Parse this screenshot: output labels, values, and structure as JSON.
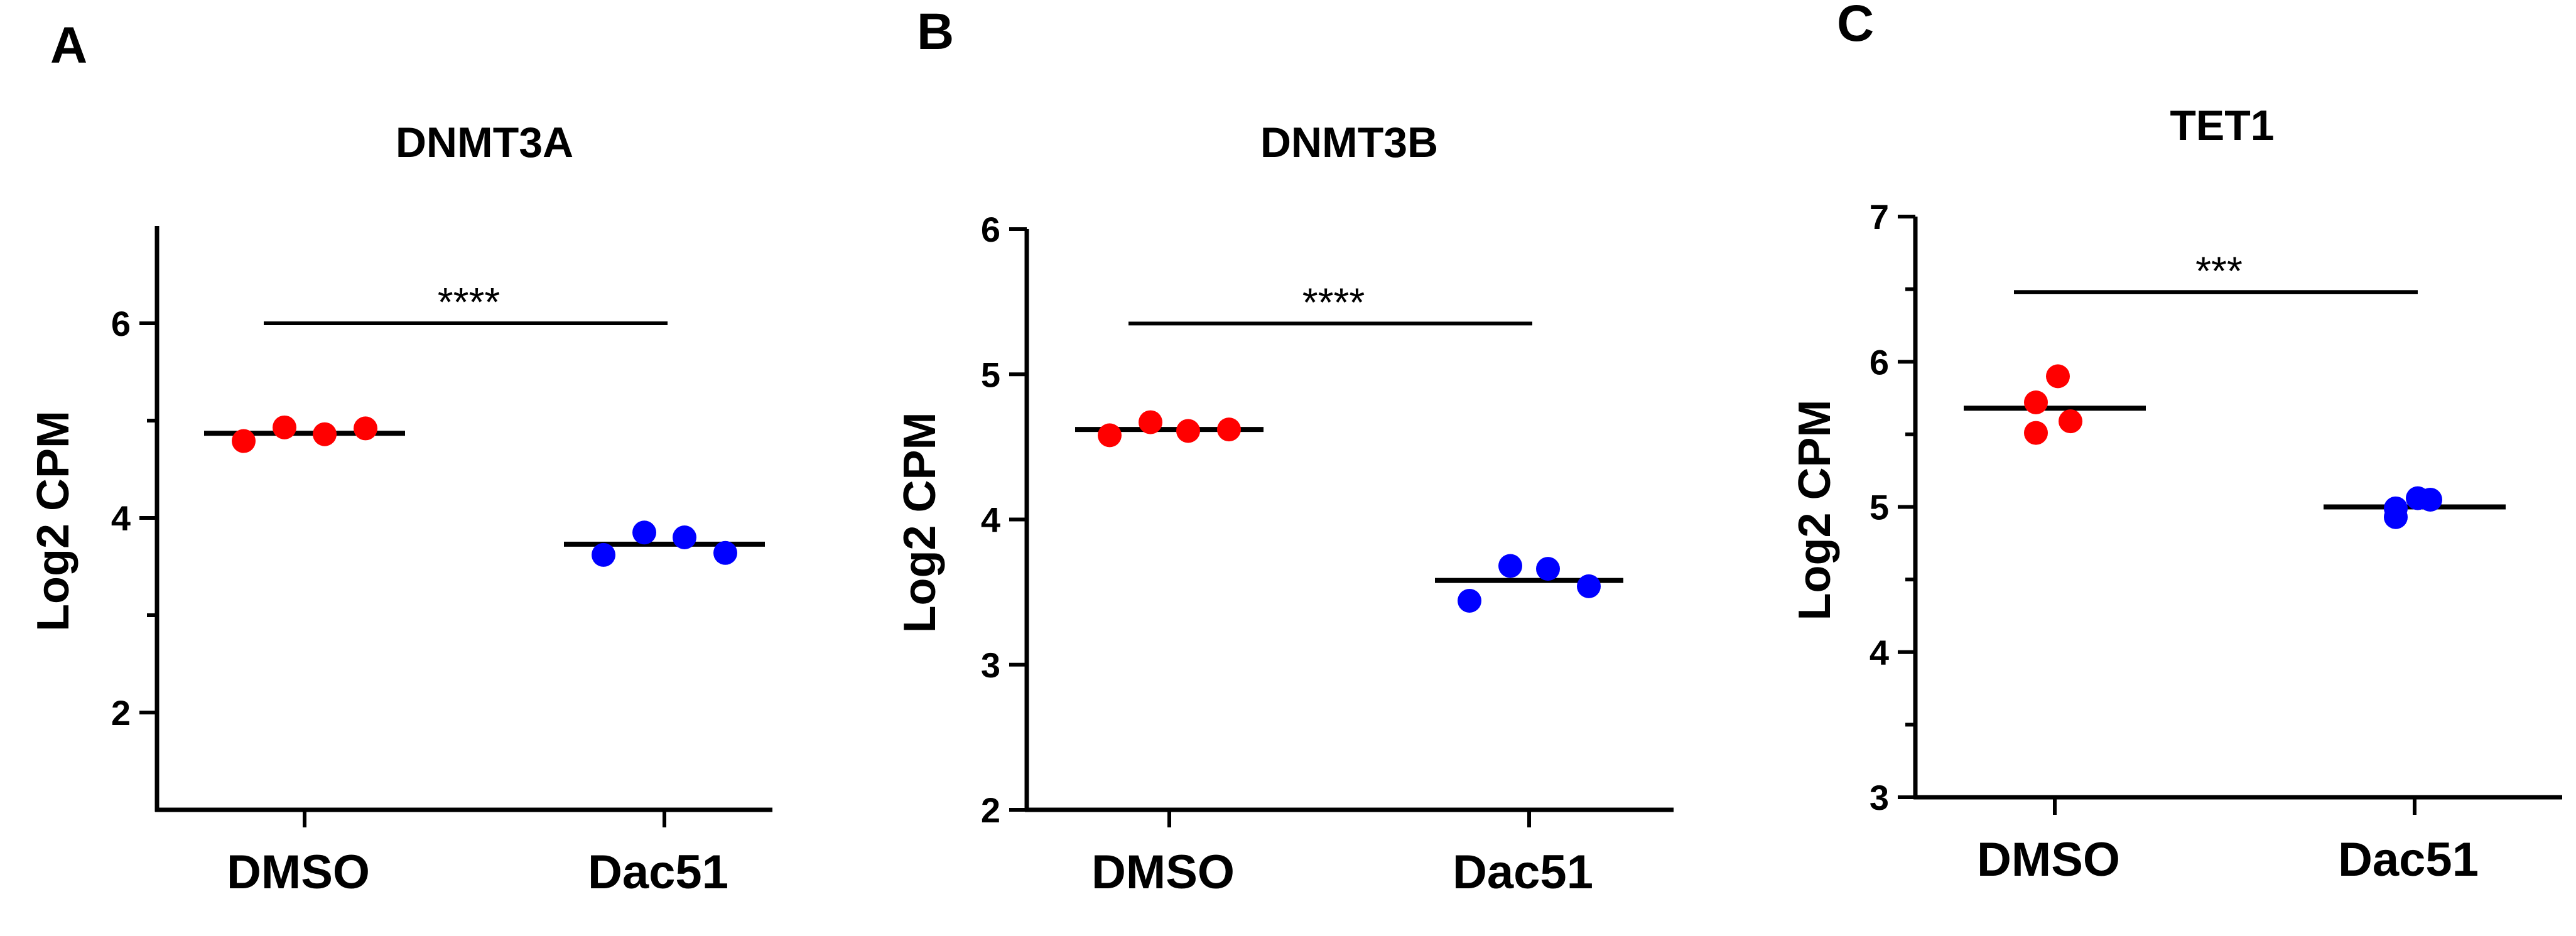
{
  "colors": {
    "DMSO": "#ff0000",
    "Dac51": "#0000ff",
    "ink": "#000000"
  },
  "chart_data": [
    {
      "panel": "A",
      "type": "scatter",
      "title": "DNMT3A",
      "ylabel": "Log2 CPM",
      "xlabel": "",
      "categories": [
        "DMSO",
        "Dac51"
      ],
      "ylim": [
        1,
        7
      ],
      "yticks": [
        2,
        4,
        6
      ],
      "minor_yticks": [
        3,
        5
      ],
      "series": [
        {
          "name": "DMSO",
          "color": "#ff0000",
          "values": [
            4.79,
            4.93,
            4.86,
            4.92
          ],
          "mean": 4.87
        },
        {
          "name": "Dac51",
          "color": "#0000ff",
          "values": [
            3.62,
            3.85,
            3.8,
            3.64
          ],
          "mean": 3.73
        }
      ],
      "significance": {
        "label": "****",
        "from": "DMSO",
        "to": "Dac51",
        "y": 6.0
      }
    },
    {
      "panel": "B",
      "type": "scatter",
      "title": "DNMT3B",
      "ylabel": "Log2 CPM",
      "xlabel": "",
      "categories": [
        "DMSO",
        "Dac51"
      ],
      "ylim": [
        2,
        6
      ],
      "yticks": [
        2,
        3,
        4,
        5,
        6
      ],
      "minor_yticks": [],
      "series": [
        {
          "name": "DMSO",
          "color": "#ff0000",
          "values": [
            4.58,
            4.67,
            4.61,
            4.62
          ],
          "mean": 4.62
        },
        {
          "name": "Dac51",
          "color": "#0000ff",
          "values": [
            3.44,
            3.68,
            3.66,
            3.54
          ],
          "mean": 3.58
        }
      ],
      "significance": {
        "label": "****",
        "from": "DMSO",
        "to": "Dac51",
        "y": 5.35
      }
    },
    {
      "panel": "C",
      "type": "scatter",
      "title": "TET1",
      "ylabel": "Log2 CPM",
      "xlabel": "",
      "categories": [
        "DMSO",
        "Dac51"
      ],
      "ylim": [
        3,
        7
      ],
      "yticks": [
        3,
        4,
        5,
        6,
        7
      ],
      "minor_yticks": [
        3.5,
        4.5,
        5.5,
        6.5
      ],
      "series": [
        {
          "name": "DMSO",
          "color": "#ff0000",
          "values": [
            5.72,
            5.9,
            5.51,
            5.59
          ],
          "mean": 5.68
        },
        {
          "name": "Dac51",
          "color": "#0000ff",
          "values": [
            4.93,
            5.06,
            4.99,
            5.05
          ],
          "mean": 5.0
        }
      ],
      "significance": {
        "label": "***",
        "from": "DMSO",
        "to": "Dac51",
        "y": 6.48
      }
    }
  ]
}
